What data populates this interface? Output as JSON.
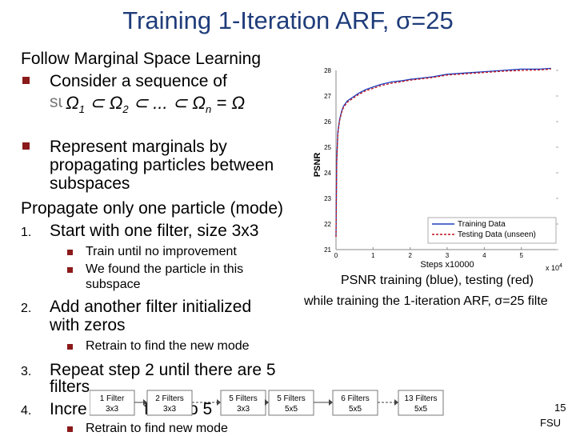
{
  "title": "Training 1-Iteration ARF, σ=25",
  "left": {
    "l1": "Follow Marginal Space Learning",
    "l2": "Consider a sequence of",
    "l3_partial": "su",
    "l4": "Represent marginals by",
    "l5": "propagating particles between",
    "l6": "subspaces",
    "l7": "Propagate only one particle (mode)",
    "n1": "1.",
    "l8": "Start with one filter, size 3x3",
    "s1": "Train until no improvement",
    "s2": "We found the particle in this",
    "s2b": "subspace",
    "n2": "2.",
    "l9": "Add another filter initialized",
    "l9b": "with zeros",
    "s3": "Retrain to find the new mode",
    "n3": "3.",
    "l10": "Repeat step 2 until there are 5",
    "l10b": "filters",
    "n4": "4.",
    "l11a": "Incre",
    "l11b": "fi",
    "l11c": "o 5",
    "s4": "Retrain to find new mode"
  },
  "chart_caption": {
    "line1": "PSNR training (blue), testing (red)",
    "line2": "while training the 1-iteration ARF, σ=25 filte"
  },
  "chart_data": {
    "type": "line",
    "xlabel": "Steps x10000",
    "x_multiplier": "x 10",
    "x_multiplier_exp": "4",
    "ylabel": "PSNR",
    "xlim": [
      0,
      6
    ],
    "ylim": [
      21,
      28
    ],
    "x_ticks": [
      "0",
      "1",
      "2",
      "3",
      "4",
      "5"
    ],
    "y_ticks": [
      "21",
      "22",
      "23",
      "24",
      "25",
      "26",
      "27",
      "28"
    ],
    "legend_position": "bottom-right",
    "series": [
      {
        "name": "Training Data",
        "color": "#1f3fbf",
        "style": "solid",
        "x": [
          0,
          0.02,
          0.05,
          0.08,
          0.1,
          0.15,
          0.2,
          0.3,
          0.45,
          0.6,
          0.8,
          1.0,
          1.2,
          1.5,
          1.8,
          2.0,
          2.3,
          2.6,
          3.0,
          3.5,
          4.0,
          4.5,
          5.0,
          5.5,
          5.8
        ],
        "y": [
          21.5,
          24.5,
          25.6,
          25.9,
          26.1,
          26.4,
          26.6,
          26.8,
          26.95,
          27.1,
          27.25,
          27.35,
          27.45,
          27.55,
          27.6,
          27.65,
          27.7,
          27.75,
          27.85,
          27.9,
          27.95,
          28.0,
          28.05,
          28.05,
          28.08
        ]
      },
      {
        "name": "Testing Data (unseen)",
        "color": "#c0141b",
        "style": "dashed",
        "x": [
          0,
          0.02,
          0.05,
          0.08,
          0.1,
          0.15,
          0.2,
          0.3,
          0.45,
          0.6,
          0.8,
          1.0,
          1.2,
          1.5,
          1.8,
          2.0,
          2.3,
          2.6,
          3.0,
          3.5,
          4.0,
          4.5,
          5.0,
          5.5,
          5.8
        ],
        "y": [
          21.5,
          24.4,
          25.5,
          25.85,
          26.05,
          26.35,
          26.55,
          26.75,
          26.9,
          27.05,
          27.2,
          27.3,
          27.4,
          27.5,
          27.57,
          27.62,
          27.67,
          27.72,
          27.82,
          27.87,
          27.92,
          27.97,
          28.0,
          28.02,
          28.05
        ]
      }
    ]
  },
  "filter_chain": [
    {
      "top": "1 Filter",
      "bottom": "3x3"
    },
    {
      "top": "2 Filters",
      "bottom": "3x3"
    },
    {
      "top": "5 Filters",
      "bottom": "3x3"
    },
    {
      "top": "5 Filters",
      "bottom": "5x5"
    },
    {
      "top": "6 Filters",
      "bottom": "5x5"
    },
    {
      "top": "13 Filters",
      "bottom": "5x5"
    }
  ],
  "page_number": "15",
  "institution": "FSU",
  "colors": {
    "title": "#1f3c7a",
    "bullet": "#8b1a1a"
  }
}
